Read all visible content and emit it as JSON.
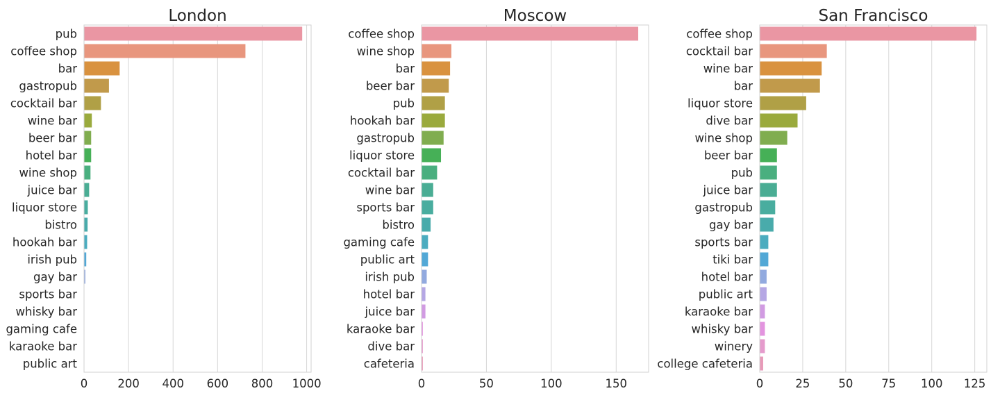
{
  "chart_data": [
    {
      "type": "bar",
      "orientation": "horizontal",
      "title": "London",
      "xlim": [
        0,
        1020
      ],
      "xticks": [
        0,
        200,
        400,
        600,
        800,
        1000
      ],
      "grid": "vertical",
      "categories": [
        "pub",
        "coffee shop",
        "bar",
        "gastropub",
        "cocktail bar",
        "wine bar",
        "beer bar",
        "hotel bar",
        "wine shop",
        "juice bar",
        "liquor store",
        "bistro",
        "hookah bar",
        "irish pub",
        "gay bar",
        "sports bar",
        "whisky bar",
        "gaming cafe",
        "karaoke bar",
        "public art"
      ],
      "values": [
        980,
        725,
        160,
        112,
        76,
        35,
        32,
        32,
        29,
        23,
        17,
        16,
        14,
        10,
        6,
        0,
        0,
        0,
        0,
        0
      ]
    },
    {
      "type": "bar",
      "orientation": "horizontal",
      "title": "Moscow",
      "xlim": [
        0,
        175
      ],
      "xticks": [
        0,
        50,
        100,
        150
      ],
      "grid": "vertical",
      "categories": [
        "coffee shop",
        "wine shop",
        "bar",
        "beer bar",
        "pub",
        "hookah bar",
        "gastropub",
        "liquor store",
        "cocktail bar",
        "wine bar",
        "sports bar",
        "bistro",
        "gaming cafe",
        "public art",
        "irish pub",
        "hotel bar",
        "juice bar",
        "karaoke bar",
        "dive bar",
        "cafeteria"
      ],
      "values": [
        167,
        23,
        22,
        21,
        18,
        18,
        17,
        15,
        12,
        9,
        9,
        7,
        5,
        5,
        4,
        3,
        3,
        1,
        1,
        1
      ]
    },
    {
      "type": "bar",
      "orientation": "horizontal",
      "title": "San Francisco",
      "xlim": [
        0,
        132
      ],
      "xticks": [
        0,
        25,
        50,
        75,
        100,
        125
      ],
      "grid": "vertical",
      "categories": [
        "coffee shop",
        "cocktail bar",
        "wine bar",
        "bar",
        "liquor store",
        "dive bar",
        "wine shop",
        "beer bar",
        "pub",
        "juice bar",
        "gastropub",
        "gay bar",
        "sports bar",
        "tiki bar",
        "hotel bar",
        "public art",
        "karaoke bar",
        "whisky bar",
        "winery",
        "college cafeteria"
      ],
      "values": [
        126,
        39,
        36,
        35,
        27,
        22,
        16,
        10,
        10,
        10,
        9,
        8,
        5,
        5,
        4,
        4,
        3,
        3,
        3,
        2
      ]
    }
  ],
  "palette": [
    "#ea96a3",
    "#e8967e",
    "#d9923f",
    "#c19a4b",
    "#b0a046",
    "#9aaa3d",
    "#80ad4f",
    "#46b057",
    "#4aaf7f",
    "#4aad94",
    "#49ad9f",
    "#49abab",
    "#4bacbf",
    "#52a8d6",
    "#92aadf",
    "#b5a7e4",
    "#d19be2",
    "#e394df",
    "#e59bcc",
    "#e79ab8"
  ]
}
